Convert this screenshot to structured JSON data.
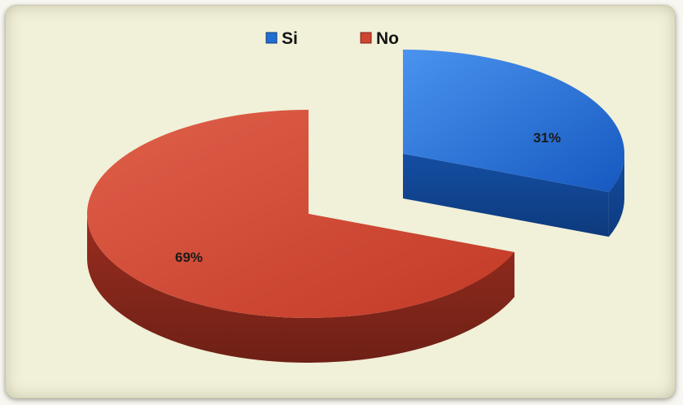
{
  "chart_data": {
    "type": "pie",
    "style": "3d-exploded",
    "categories": [
      "Si",
      "No"
    ],
    "values": [
      31,
      69
    ],
    "labels": [
      "31%",
      "69%"
    ],
    "colors": [
      "#1f6fd3",
      "#cf4630"
    ],
    "legend_position": "top",
    "title": ""
  }
}
